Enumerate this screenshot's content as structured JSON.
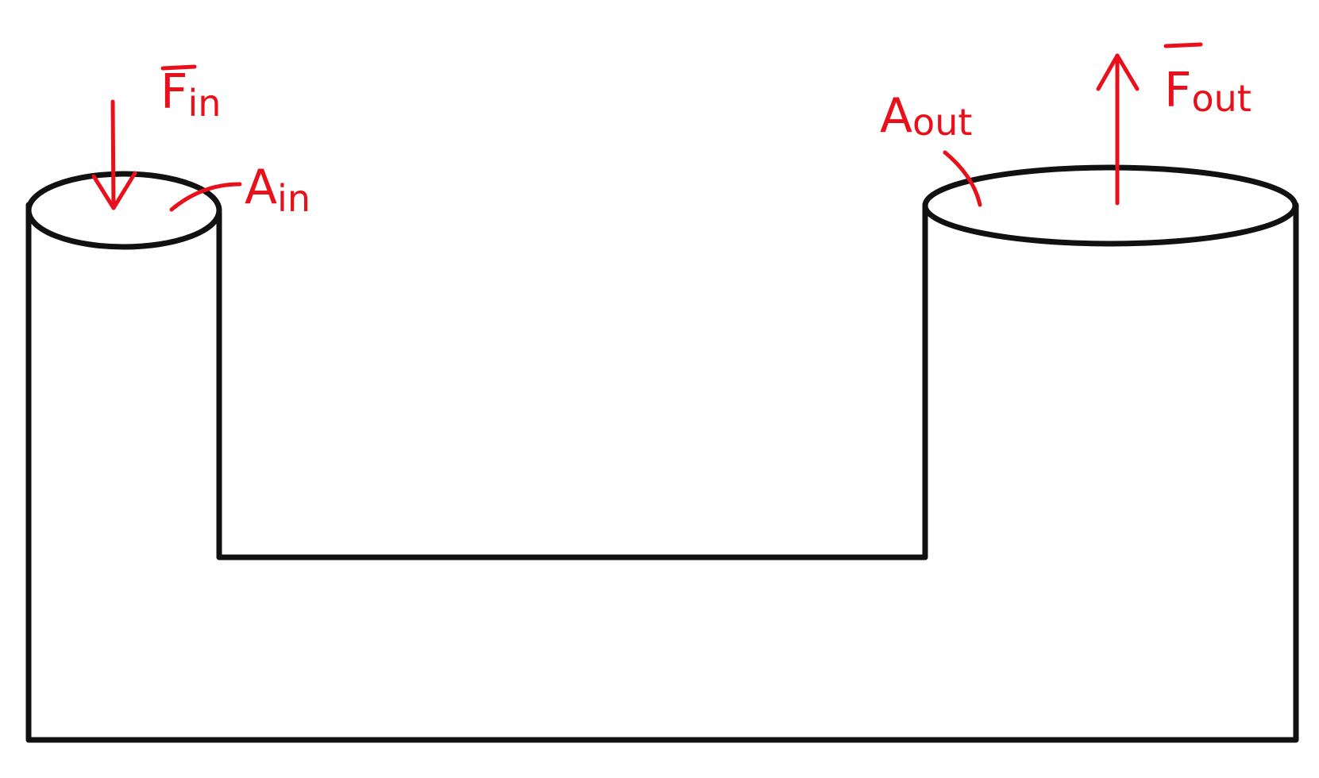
{
  "labels": {
    "force_in": {
      "main": "F",
      "sub": "in"
    },
    "area_in": {
      "main": "A",
      "sub": "in"
    },
    "area_out": {
      "main": "A",
      "sub": "out"
    },
    "force_out": {
      "main": "F",
      "sub": "out"
    }
  },
  "colors": {
    "outline": "#111111",
    "annotation": "#e8101a",
    "background": "#ffffff"
  }
}
